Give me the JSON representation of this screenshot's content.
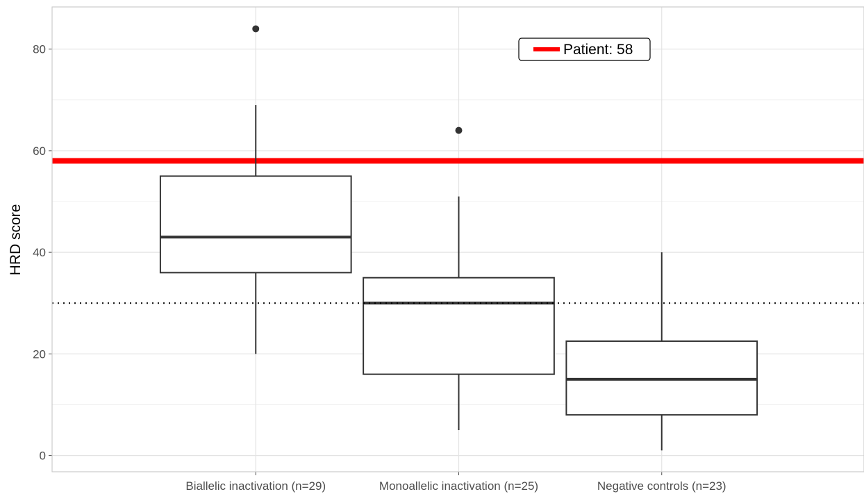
{
  "chart_data": {
    "type": "box",
    "ylabel": "HRD score",
    "xlabel": "",
    "ylim": [
      -3.2,
      88.3
    ],
    "y_ticks": [
      0,
      20,
      40,
      60,
      80
    ],
    "y_tick_labels": [
      "0",
      "20",
      "40",
      "60",
      "80"
    ],
    "grid": true,
    "categories": [
      "Biallelic inactivation (n=29)",
      "Monoallelic inactivation (n=25)",
      "Negative controls (n=23)"
    ],
    "boxes": [
      {
        "category": "Biallelic inactivation (n=29)",
        "whisker_low": 20,
        "q1": 36,
        "median": 43,
        "q3": 55,
        "whisker_high": 69,
        "outliers": [
          84
        ]
      },
      {
        "category": "Monoallelic inactivation (n=25)",
        "whisker_low": 5,
        "q1": 16,
        "median": 30,
        "q3": 35,
        "whisker_high": 51,
        "outliers": [
          64
        ]
      },
      {
        "category": "Negative controls (n=23)",
        "whisker_low": 1,
        "q1": 8,
        "median": 15,
        "q3": 22.5,
        "whisker_high": 40,
        "outliers": []
      }
    ],
    "reference_lines": [
      {
        "value": 58,
        "style": "solid",
        "color": "#ff0000",
        "label": "Patient: 58"
      },
      {
        "value": 30,
        "style": "dotted",
        "color": "#000000"
      }
    ],
    "legend": {
      "position": "top-center",
      "entries": [
        {
          "label": "Patient: 58",
          "color": "#ff0000"
        }
      ]
    }
  }
}
